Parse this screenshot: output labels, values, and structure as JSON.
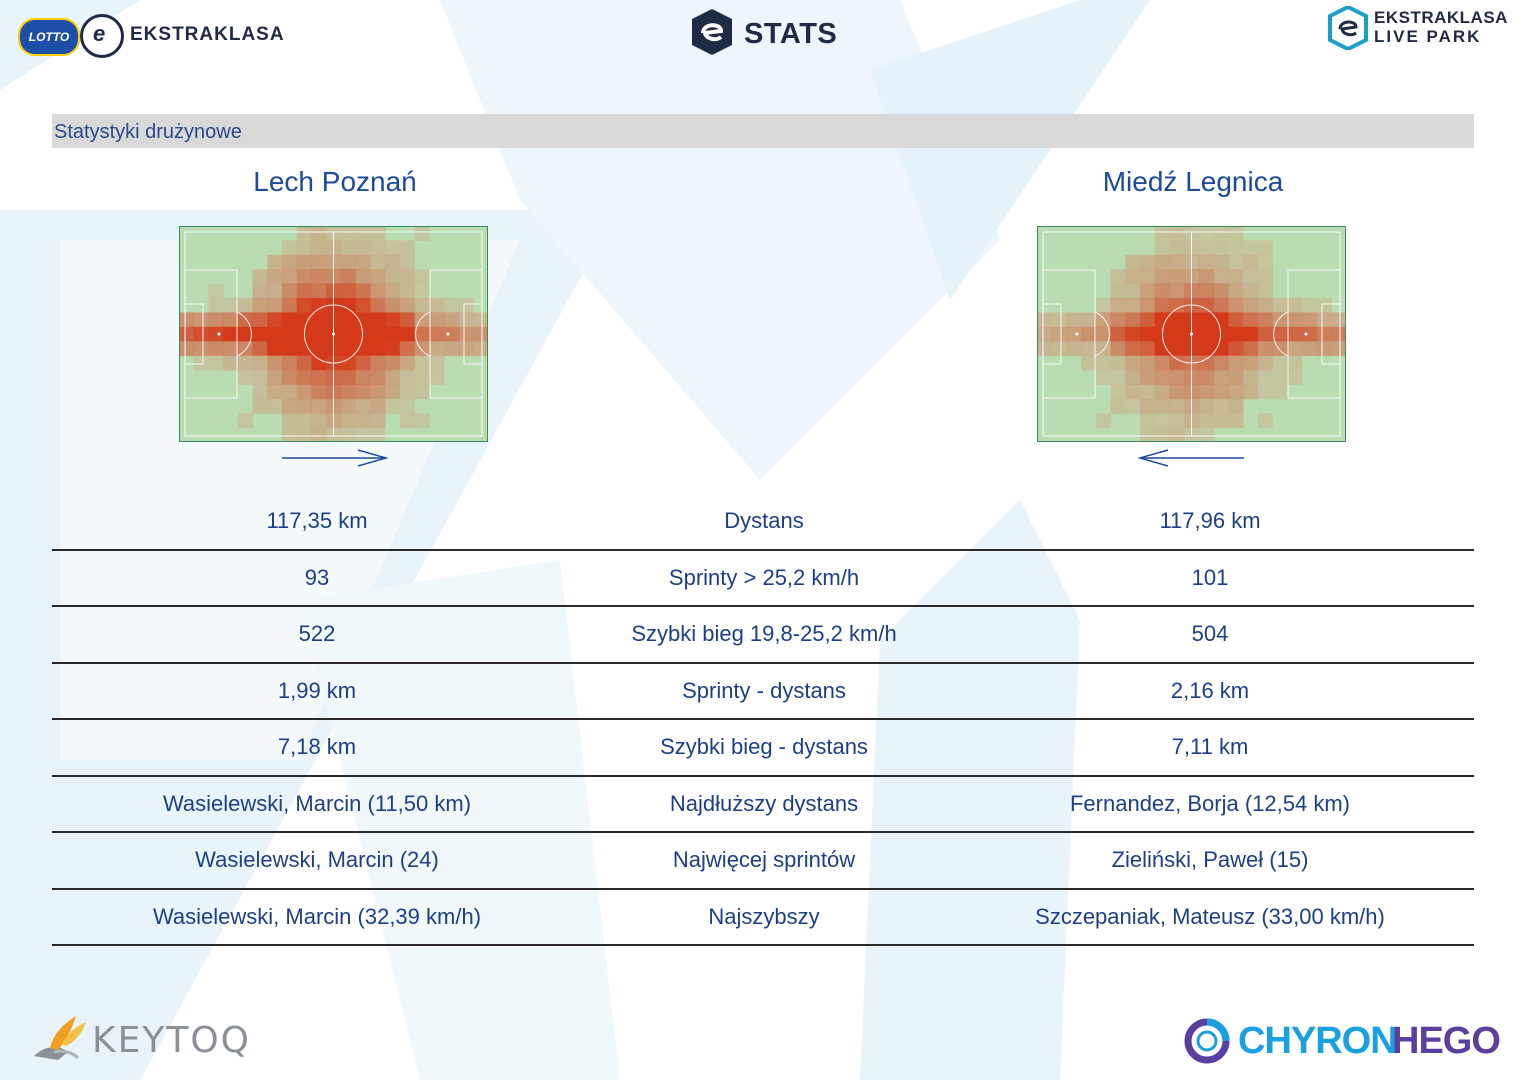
{
  "header": {
    "left_logo": {
      "lotto": "LOTTO",
      "ball_letter": "e",
      "text": "EKSTRAKLASA"
    },
    "center_logo": {
      "text": "STATS"
    },
    "right_logo": {
      "line1": "EKSTRAKLASA",
      "line2": "LIVE PARK"
    }
  },
  "section": {
    "title": "Statystyki drużynowe"
  },
  "teams": {
    "home": {
      "name": "Lech Poznań",
      "direction": "right"
    },
    "away": {
      "name": "Miedź Legnica",
      "direction": "left"
    }
  },
  "colors": {
    "pitch_green": "#b9dcb0",
    "heat_low": "#c7d9b4",
    "heat_high": "#d43a1a",
    "accent_blue": "#1d4a9a"
  },
  "stats": [
    {
      "home": "117,35 km",
      "label": "Dystans",
      "away": "117,96 km"
    },
    {
      "home": "93",
      "label": "Sprinty > 25,2 km/h",
      "away": "101"
    },
    {
      "home": "522",
      "label": "Szybki bieg 19,8-25,2 km/h",
      "away": "504"
    },
    {
      "home": "1,99 km",
      "label": "Sprinty - dystans",
      "away": "2,16 km"
    },
    {
      "home": "7,18 km",
      "label": "Szybki bieg - dystans",
      "away": "7,11 km"
    },
    {
      "home": "Wasielewski, Marcin (11,50 km)",
      "label": "Najdłuższy dystans",
      "away": "Fernandez, Borja (12,54 km)"
    },
    {
      "home": "Wasielewski, Marcin (24)",
      "label": "Najwięcej sprintów",
      "away": "Zieliński, Paweł (15)"
    },
    {
      "home": "Wasielewski, Marcin (32,39 km/h)",
      "label": "Najszybszy",
      "away": "Szczepaniak, Mateusz (33,00 km/h)"
    }
  ],
  "footer": {
    "left_logo": "KEYTOQ",
    "right_logo_a": "CHYRON",
    "right_logo_b": "HEGO"
  }
}
